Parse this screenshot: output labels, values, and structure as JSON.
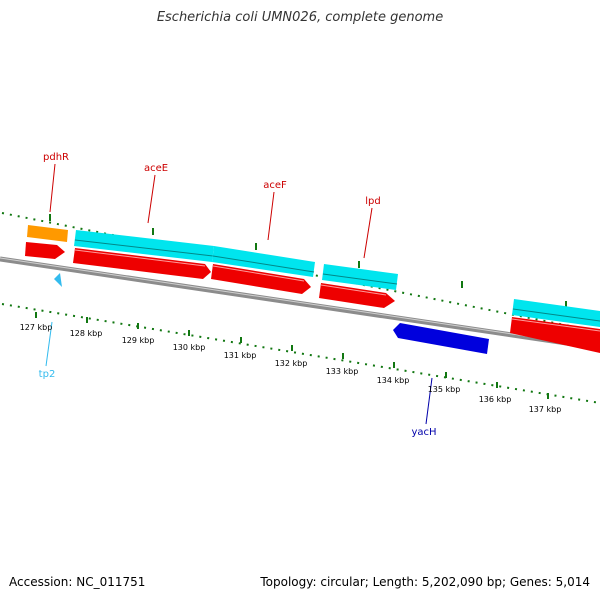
{
  "title": "Escherichia coli UMN026, complete genome",
  "footer": {
    "accession": "Accession: NC_011751",
    "stats": "Topology: circular; Length: 5,202,090 bp; Genes: 5,014"
  },
  "colors": {
    "backbone": "#8c8c8c",
    "tick": "#117711",
    "cds": "#ee0000",
    "gene": "#00e5ee",
    "orange_feature": "#ff9900",
    "reverse_gene": "#0000dd",
    "trna": "#33bbee"
  },
  "ruler_labels": [
    "127 kbp",
    "128 kbp",
    "129 kbp",
    "130 kbp",
    "131 kbp",
    "132 kbp",
    "133 kbp",
    "134 kbp",
    "135 kbp",
    "136 kbp",
    "137 kbp"
  ],
  "gene_labels": {
    "pdhR": "pdhR",
    "aceE": "aceE",
    "aceF": "aceF",
    "lpd": "lpd",
    "tp2": "tp2",
    "yacH": "yacH"
  }
}
